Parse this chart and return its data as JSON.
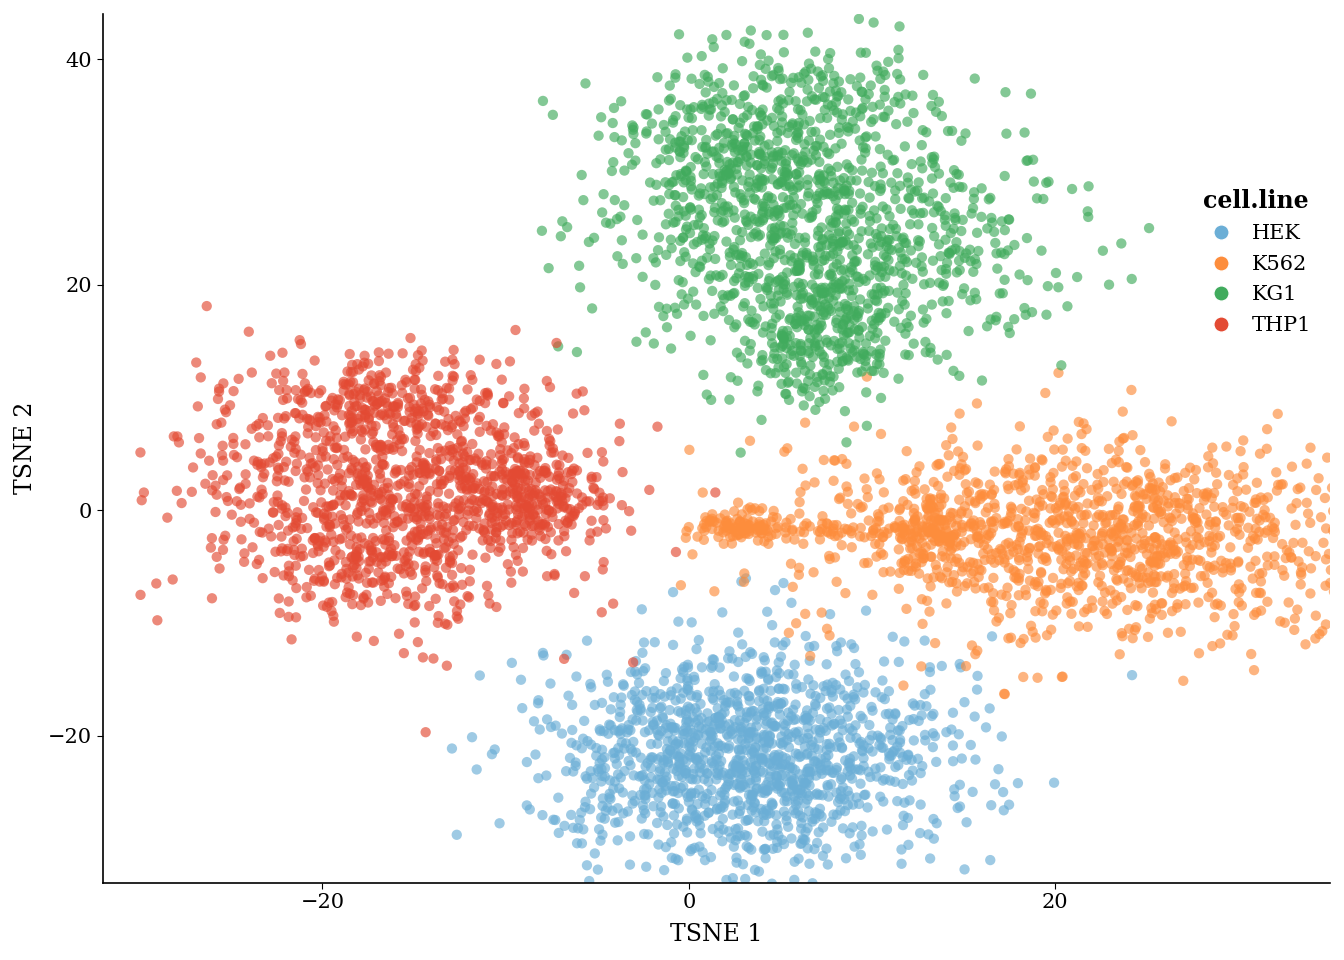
{
  "title": "",
  "xlabel": "TSNE 1",
  "ylabel": "TSNE 2",
  "xlim": [
    -32,
    35
  ],
  "ylim": [
    -33,
    44
  ],
  "xticks": [
    -20,
    0,
    20
  ],
  "yticks": [
    -20,
    0,
    20,
    40
  ],
  "background_color": "#ffffff",
  "cell_lines": {
    "HEK": {
      "color": "#6baed6",
      "center_x": 3,
      "center_y": -22,
      "sx": 5.5,
      "sy": 5.0,
      "n": 1300
    },
    "K562": {
      "color": "#fd8d3c",
      "center_x": 22,
      "center_y": -2,
      "sx": 7.5,
      "sy": 4.5,
      "n": 1400
    },
    "KG1": {
      "color": "#41ab5d",
      "center_x": 6,
      "center_y": 22,
      "sx": 6.5,
      "sy": 7.0,
      "n": 1500
    },
    "THP1": {
      "color": "#e34a33",
      "center_x": -16,
      "center_y": 2,
      "sx": 6.5,
      "sy": 6.5,
      "n": 1400
    }
  },
  "k562_bridge_x": 2.5,
  "k562_bridge_y": -1.5,
  "legend_title": "cell.line",
  "point_size": 55,
  "alpha": 0.65
}
